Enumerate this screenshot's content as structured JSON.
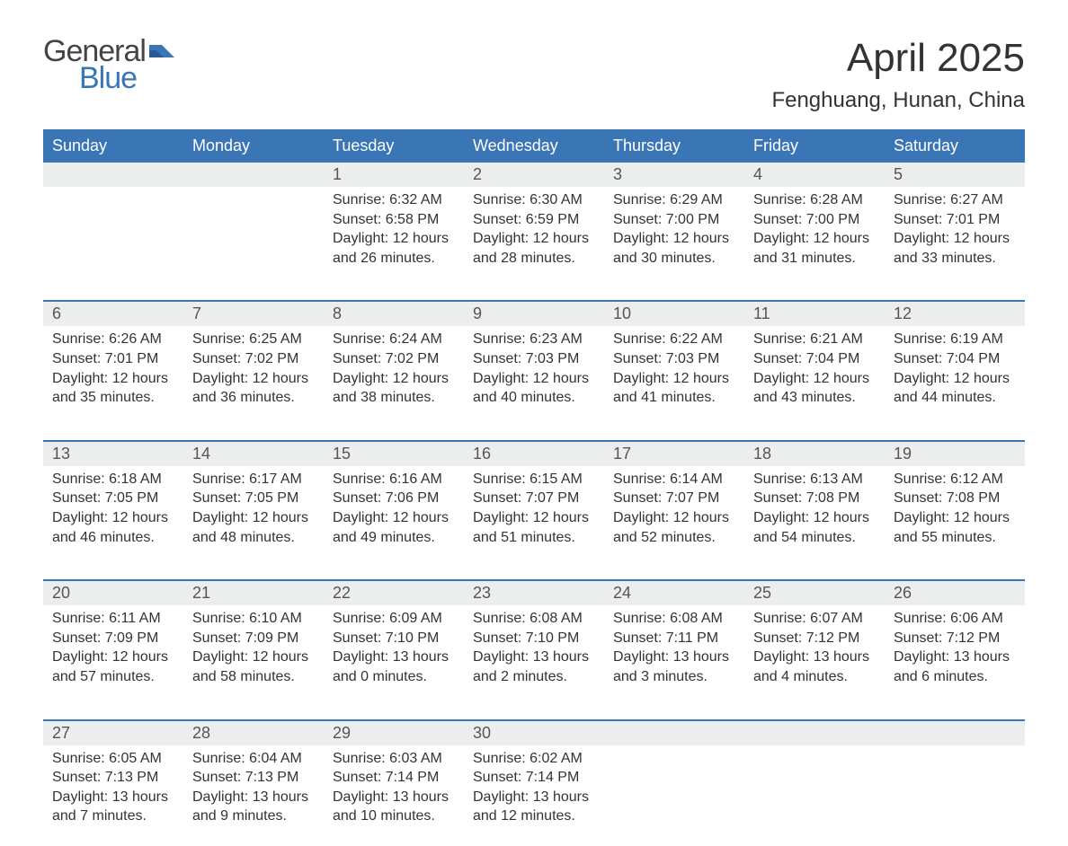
{
  "brand": {
    "word1": "General",
    "word2": "Blue",
    "word1_color": "#444444",
    "word2_color": "#3a75b5",
    "flag_color": "#3a75b5"
  },
  "header": {
    "month_title": "April 2025",
    "location": "Fenghuang, Hunan, China"
  },
  "colors": {
    "header_bg": "#3a75b5",
    "header_text": "#ffffff",
    "daynum_bg": "#eceded",
    "week_divider": "#3a75b5",
    "body_text": "#333333",
    "page_bg": "#ffffff"
  },
  "layout": {
    "columns": 7,
    "rows": 5,
    "cell_font_size_pt": 12,
    "header_font_size_pt": 14,
    "title_font_size_pt": 33,
    "location_font_size_pt": 18
  },
  "weekdays": [
    "Sunday",
    "Monday",
    "Tuesday",
    "Wednesday",
    "Thursday",
    "Friday",
    "Saturday"
  ],
  "weeks": [
    {
      "days": [
        {
          "num": "",
          "sunrise": "",
          "sunset": "",
          "daylight1": "",
          "daylight2": ""
        },
        {
          "num": "",
          "sunrise": "",
          "sunset": "",
          "daylight1": "",
          "daylight2": ""
        },
        {
          "num": "1",
          "sunrise": "Sunrise: 6:32 AM",
          "sunset": "Sunset: 6:58 PM",
          "daylight1": "Daylight: 12 hours",
          "daylight2": "and 26 minutes."
        },
        {
          "num": "2",
          "sunrise": "Sunrise: 6:30 AM",
          "sunset": "Sunset: 6:59 PM",
          "daylight1": "Daylight: 12 hours",
          "daylight2": "and 28 minutes."
        },
        {
          "num": "3",
          "sunrise": "Sunrise: 6:29 AM",
          "sunset": "Sunset: 7:00 PM",
          "daylight1": "Daylight: 12 hours",
          "daylight2": "and 30 minutes."
        },
        {
          "num": "4",
          "sunrise": "Sunrise: 6:28 AM",
          "sunset": "Sunset: 7:00 PM",
          "daylight1": "Daylight: 12 hours",
          "daylight2": "and 31 minutes."
        },
        {
          "num": "5",
          "sunrise": "Sunrise: 6:27 AM",
          "sunset": "Sunset: 7:01 PM",
          "daylight1": "Daylight: 12 hours",
          "daylight2": "and 33 minutes."
        }
      ]
    },
    {
      "days": [
        {
          "num": "6",
          "sunrise": "Sunrise: 6:26 AM",
          "sunset": "Sunset: 7:01 PM",
          "daylight1": "Daylight: 12 hours",
          "daylight2": "and 35 minutes."
        },
        {
          "num": "7",
          "sunrise": "Sunrise: 6:25 AM",
          "sunset": "Sunset: 7:02 PM",
          "daylight1": "Daylight: 12 hours",
          "daylight2": "and 36 minutes."
        },
        {
          "num": "8",
          "sunrise": "Sunrise: 6:24 AM",
          "sunset": "Sunset: 7:02 PM",
          "daylight1": "Daylight: 12 hours",
          "daylight2": "and 38 minutes."
        },
        {
          "num": "9",
          "sunrise": "Sunrise: 6:23 AM",
          "sunset": "Sunset: 7:03 PM",
          "daylight1": "Daylight: 12 hours",
          "daylight2": "and 40 minutes."
        },
        {
          "num": "10",
          "sunrise": "Sunrise: 6:22 AM",
          "sunset": "Sunset: 7:03 PM",
          "daylight1": "Daylight: 12 hours",
          "daylight2": "and 41 minutes."
        },
        {
          "num": "11",
          "sunrise": "Sunrise: 6:21 AM",
          "sunset": "Sunset: 7:04 PM",
          "daylight1": "Daylight: 12 hours",
          "daylight2": "and 43 minutes."
        },
        {
          "num": "12",
          "sunrise": "Sunrise: 6:19 AM",
          "sunset": "Sunset: 7:04 PM",
          "daylight1": "Daylight: 12 hours",
          "daylight2": "and 44 minutes."
        }
      ]
    },
    {
      "days": [
        {
          "num": "13",
          "sunrise": "Sunrise: 6:18 AM",
          "sunset": "Sunset: 7:05 PM",
          "daylight1": "Daylight: 12 hours",
          "daylight2": "and 46 minutes."
        },
        {
          "num": "14",
          "sunrise": "Sunrise: 6:17 AM",
          "sunset": "Sunset: 7:05 PM",
          "daylight1": "Daylight: 12 hours",
          "daylight2": "and 48 minutes."
        },
        {
          "num": "15",
          "sunrise": "Sunrise: 6:16 AM",
          "sunset": "Sunset: 7:06 PM",
          "daylight1": "Daylight: 12 hours",
          "daylight2": "and 49 minutes."
        },
        {
          "num": "16",
          "sunrise": "Sunrise: 6:15 AM",
          "sunset": "Sunset: 7:07 PM",
          "daylight1": "Daylight: 12 hours",
          "daylight2": "and 51 minutes."
        },
        {
          "num": "17",
          "sunrise": "Sunrise: 6:14 AM",
          "sunset": "Sunset: 7:07 PM",
          "daylight1": "Daylight: 12 hours",
          "daylight2": "and 52 minutes."
        },
        {
          "num": "18",
          "sunrise": "Sunrise: 6:13 AM",
          "sunset": "Sunset: 7:08 PM",
          "daylight1": "Daylight: 12 hours",
          "daylight2": "and 54 minutes."
        },
        {
          "num": "19",
          "sunrise": "Sunrise: 6:12 AM",
          "sunset": "Sunset: 7:08 PM",
          "daylight1": "Daylight: 12 hours",
          "daylight2": "and 55 minutes."
        }
      ]
    },
    {
      "days": [
        {
          "num": "20",
          "sunrise": "Sunrise: 6:11 AM",
          "sunset": "Sunset: 7:09 PM",
          "daylight1": "Daylight: 12 hours",
          "daylight2": "and 57 minutes."
        },
        {
          "num": "21",
          "sunrise": "Sunrise: 6:10 AM",
          "sunset": "Sunset: 7:09 PM",
          "daylight1": "Daylight: 12 hours",
          "daylight2": "and 58 minutes."
        },
        {
          "num": "22",
          "sunrise": "Sunrise: 6:09 AM",
          "sunset": "Sunset: 7:10 PM",
          "daylight1": "Daylight: 13 hours",
          "daylight2": "and 0 minutes."
        },
        {
          "num": "23",
          "sunrise": "Sunrise: 6:08 AM",
          "sunset": "Sunset: 7:10 PM",
          "daylight1": "Daylight: 13 hours",
          "daylight2": "and 2 minutes."
        },
        {
          "num": "24",
          "sunrise": "Sunrise: 6:08 AM",
          "sunset": "Sunset: 7:11 PM",
          "daylight1": "Daylight: 13 hours",
          "daylight2": "and 3 minutes."
        },
        {
          "num": "25",
          "sunrise": "Sunrise: 6:07 AM",
          "sunset": "Sunset: 7:12 PM",
          "daylight1": "Daylight: 13 hours",
          "daylight2": "and 4 minutes."
        },
        {
          "num": "26",
          "sunrise": "Sunrise: 6:06 AM",
          "sunset": "Sunset: 7:12 PM",
          "daylight1": "Daylight: 13 hours",
          "daylight2": "and 6 minutes."
        }
      ]
    },
    {
      "days": [
        {
          "num": "27",
          "sunrise": "Sunrise: 6:05 AM",
          "sunset": "Sunset: 7:13 PM",
          "daylight1": "Daylight: 13 hours",
          "daylight2": "and 7 minutes."
        },
        {
          "num": "28",
          "sunrise": "Sunrise: 6:04 AM",
          "sunset": "Sunset: 7:13 PM",
          "daylight1": "Daylight: 13 hours",
          "daylight2": "and 9 minutes."
        },
        {
          "num": "29",
          "sunrise": "Sunrise: 6:03 AM",
          "sunset": "Sunset: 7:14 PM",
          "daylight1": "Daylight: 13 hours",
          "daylight2": "and 10 minutes."
        },
        {
          "num": "30",
          "sunrise": "Sunrise: 6:02 AM",
          "sunset": "Sunset: 7:14 PM",
          "daylight1": "Daylight: 13 hours",
          "daylight2": "and 12 minutes."
        },
        {
          "num": "",
          "sunrise": "",
          "sunset": "",
          "daylight1": "",
          "daylight2": ""
        },
        {
          "num": "",
          "sunrise": "",
          "sunset": "",
          "daylight1": "",
          "daylight2": ""
        },
        {
          "num": "",
          "sunrise": "",
          "sunset": "",
          "daylight1": "",
          "daylight2": ""
        }
      ]
    }
  ]
}
